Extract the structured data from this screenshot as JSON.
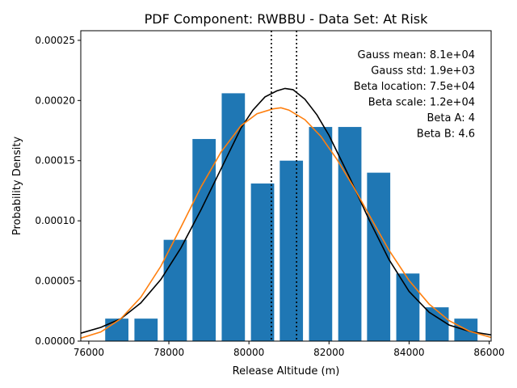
{
  "chart_data": {
    "type": "bar",
    "title": "PDF Component: RWBBU - Data Set: At Risk",
    "xlabel": "Release Altitude (m)",
    "ylabel": "Probability Density",
    "xlim": [
      75800,
      86050
    ],
    "ylim": [
      0,
      0.000258
    ],
    "xticks": [
      76000,
      78000,
      80000,
      82000,
      84000,
      86000
    ],
    "xtick_labels": [
      "76000",
      "78000",
      "80000",
      "82000",
      "84000",
      "86000"
    ],
    "yticks": [
      0,
      5e-05,
      0.0001,
      0.00015,
      0.0002,
      0.00025
    ],
    "ytick_labels": [
      "0.00000",
      "0.00005",
      "0.00010",
      "0.00015",
      "0.00020",
      "0.00025"
    ],
    "grid": false,
    "bars": {
      "color": "#1f77b4",
      "width": 580,
      "centers": [
        76700,
        77430,
        78160,
        78880,
        79610,
        80340,
        81060,
        81790,
        82520,
        83240,
        83970,
        84700,
        85420
      ],
      "values": [
        1.87e-05,
        1.87e-05,
        8.42e-05,
        0.000168,
        0.000206,
        0.000131,
        0.00015,
        0.000178,
        0.000178,
        0.00014,
        5.62e-05,
        2.81e-05,
        1.87e-05
      ]
    },
    "series": [
      {
        "color": "#000000",
        "x": [
          75800,
          76300,
          76800,
          77300,
          77800,
          78300,
          78800,
          79300,
          79800,
          80100,
          80400,
          80700,
          80900,
          81100,
          81400,
          81700,
          82000,
          82500,
          83000,
          83500,
          84000,
          84500,
          85000,
          85500,
          86050
        ],
        "y": [
          6.6e-06,
          1.14e-05,
          1.86e-05,
          3.17e-05,
          5.12e-05,
          7.74e-05,
          0.000109,
          0.000143,
          0.000177,
          0.000192,
          0.000203,
          0.000208,
          0.00021,
          0.000209,
          0.000201,
          0.000188,
          0.000171,
          0.000137,
          0.000101,
          6.77e-05,
          4.13e-05,
          2.4e-05,
          1.34e-05,
          8.1e-06,
          5.2e-06
        ]
      },
      {
        "color": "#ff7f0e",
        "x": [
          75800,
          76300,
          76800,
          77300,
          77800,
          78300,
          78800,
          79300,
          79800,
          80200,
          80600,
          80800,
          81000,
          81400,
          81800,
          82200,
          82600,
          83000,
          83500,
          84000,
          84500,
          85000,
          85500,
          86050
        ],
        "y": [
          2.5e-06,
          7.6e-06,
          1.86e-05,
          3.64e-05,
          6.22e-05,
          9.45e-05,
          0.000128,
          0.000157,
          0.000179,
          0.000189,
          0.000193,
          0.000194,
          0.000192,
          0.000184,
          0.00017,
          0.000151,
          0.000129,
          0.000105,
          7.55e-05,
          5.04e-05,
          3.08e-05,
          1.7e-05,
          8.3e-06,
          3e-06
        ]
      }
    ],
    "vlines": [
      80560,
      81190
    ],
    "annotations": [
      "Gauss mean: 8.1e+04",
      "Gauss std: 1.9e+03",
      "Beta location: 7.5e+04",
      "Beta scale: 1.2e+04",
      "Beta A: 4",
      "Beta B: 4.6"
    ]
  }
}
